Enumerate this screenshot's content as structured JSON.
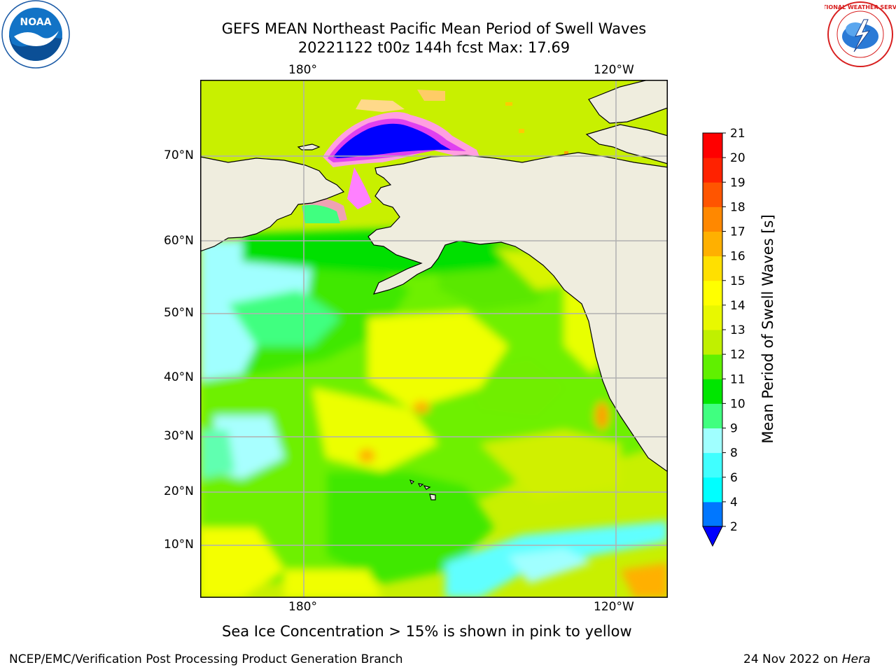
{
  "title": {
    "line1": "GEFS MEAN Northeast Pacific Mean Period of Swell Waves",
    "line2": "20221122 t00z 144h fcst   Max: 17.69"
  },
  "logos": {
    "left_text": "NOAA",
    "right_text": "NATIONAL WEATHER SERVICE"
  },
  "map": {
    "lon_top": [
      "180°",
      "120°W"
    ],
    "lon_bottom": [
      "180°",
      "120°W"
    ],
    "lat_labels": [
      "70°N",
      "60°N",
      "50°N",
      "40°N",
      "30°N",
      "20°N",
      "10°N"
    ],
    "land_color": "#efedde",
    "grid_color": "#b0b0b0"
  },
  "colorbar": {
    "label": "Mean Period of Swell Waves [s]",
    "ticks": [
      "2",
      "4",
      "6",
      "8",
      "9",
      "10",
      "11",
      "12",
      "13",
      "14",
      "15",
      "16",
      "17",
      "18",
      "19",
      "20",
      "21"
    ],
    "colors": [
      "#0000ff",
      "#0077ff",
      "#00ffff",
      "#40ffff",
      "#a0ffff",
      "#40ff80",
      "#00e600",
      "#60f000",
      "#c0f000",
      "#e8f800",
      "#ffff00",
      "#ffe000",
      "#ffb000",
      "#ff8800",
      "#ff5500",
      "#ff2200",
      "#ff0000"
    ]
  },
  "note": "Sea Ice Concentration > 15% is shown in pink to yellow",
  "footer": {
    "left": "NCEP/EMC/Verification Post Processing Product Generation Branch",
    "right_date": "24 Nov 2022 on ",
    "right_host": "Hera"
  }
}
